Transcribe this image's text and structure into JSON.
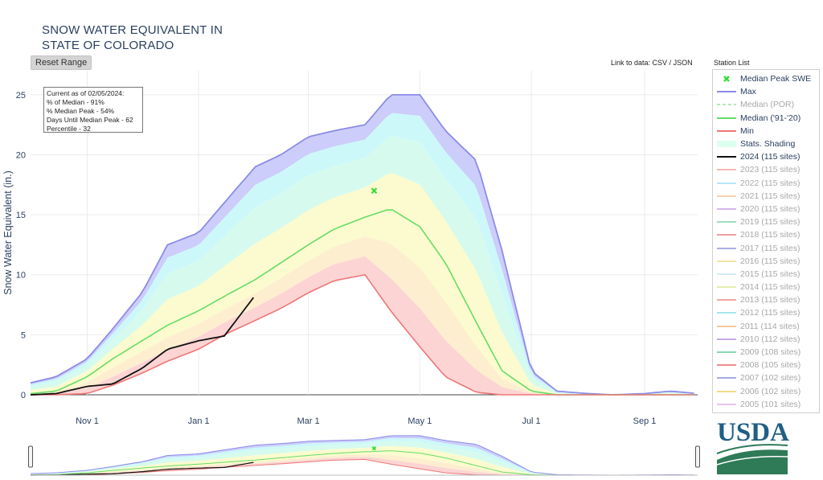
{
  "header": {
    "title_line1": "SNOW WATER EQUIVALENT IN",
    "title_line2": "STATE OF COLORADO",
    "reset_label": "Reset Range",
    "link_prefix": "Link to data: ",
    "link_csv": "CSV",
    "link_sep": " / ",
    "link_json": "JSON",
    "station_list": "Station List"
  },
  "status_box": {
    "lines": [
      "Current as of 02/05/2024:",
      "% of Median - 91%",
      "% Median Peak - 54%",
      "Days Until Median Peak - 62",
      "Percentile - 32"
    ]
  },
  "legend": [
    {
      "label": "Median Peak SWE",
      "type": "marker",
      "color": "#33dd33",
      "dim": false
    },
    {
      "label": "Max",
      "type": "line",
      "color": "#8c8ce8",
      "dim": false
    },
    {
      "label": "Median (POR)",
      "type": "dash",
      "color": "#b9e6b9",
      "dim": true
    },
    {
      "label": "Median ('91-'20)",
      "type": "line",
      "color": "#66dd66",
      "dim": false
    },
    {
      "label": "Min",
      "type": "line",
      "color": "#ee7777",
      "dim": false
    },
    {
      "label": "Stats. Shading",
      "type": "fill",
      "color": "#ddfff0",
      "dim": false
    },
    {
      "label": "2024 (115 sites)",
      "type": "line",
      "color": "#111111",
      "dim": false
    },
    {
      "label": "2023 (115 sites)",
      "type": "line",
      "color": "#f6b6b6",
      "dim": true
    },
    {
      "label": "2022 (115 sites)",
      "type": "line",
      "color": "#b6e6f6",
      "dim": true
    },
    {
      "label": "2021 (115 sites)",
      "type": "line",
      "color": "#f6d0b0",
      "dim": true
    },
    {
      "label": "2020 (115 sites)",
      "type": "line",
      "color": "#d6b6ec",
      "dim": true
    },
    {
      "label": "2019 (115 sites)",
      "type": "line",
      "color": "#9edcc0",
      "dim": true
    },
    {
      "label": "2018 (115 sites)",
      "type": "line",
      "color": "#ee9e9e",
      "dim": true
    },
    {
      "label": "2017 (115 sites)",
      "type": "line",
      "color": "#aab0e6",
      "dim": true
    },
    {
      "label": "2016 (115 sites)",
      "type": "line",
      "color": "#f6e2a6",
      "dim": true
    },
    {
      "label": "2015 (115 sites)",
      "type": "line",
      "color": "#d2ecf2",
      "dim": true
    },
    {
      "label": "2014 (115 sites)",
      "type": "line",
      "color": "#e2eeb0",
      "dim": true
    },
    {
      "label": "2013 (115 sites)",
      "type": "line",
      "color": "#f2a6a6",
      "dim": true
    },
    {
      "label": "2012 (115 sites)",
      "type": "line",
      "color": "#a6e6ee",
      "dim": true
    },
    {
      "label": "2011 (114 sites)",
      "type": "line",
      "color": "#f6c89a",
      "dim": true
    },
    {
      "label": "2010 (112 sites)",
      "type": "line",
      "color": "#c6aae6",
      "dim": true
    },
    {
      "label": "2009 (108 sites)",
      "type": "line",
      "color": "#88d6b4",
      "dim": true
    },
    {
      "label": "2008 (105 sites)",
      "type": "line",
      "color": "#ee8e8e",
      "dim": true
    },
    {
      "label": "2007 (102 sites)",
      "type": "line",
      "color": "#a6aae6",
      "dim": true
    },
    {
      "label": "2006 (102 sites)",
      "type": "line",
      "color": "#f6da8e",
      "dim": true
    },
    {
      "label": "2005 (101 sites)",
      "type": "line",
      "color": "#e6c6ee",
      "dim": true
    }
  ],
  "logo_text": "USDA",
  "chart_data": {
    "type": "area",
    "title": "SNOW WATER EQUIVALENT IN STATE OF COLORADO",
    "ylabel": "Snow Water Equivalent (in.)",
    "xlabel": "",
    "x_ticks": [
      "Nov 1",
      "Jan 1",
      "Mar 1",
      "May 1",
      "Jul 1",
      "Sep 1"
    ],
    "x_range": [
      "2023-10-01",
      "2024-09-30"
    ],
    "ylim": [
      0,
      27
    ],
    "y_ticks": [
      0,
      5,
      10,
      15,
      20,
      25
    ],
    "grid": true,
    "legend_position": "right",
    "median_peak": {
      "date": "2024-04-06",
      "value": 17.0
    },
    "x": [
      "2023-10-01",
      "2023-10-15",
      "2023-11-01",
      "2023-11-15",
      "2023-12-01",
      "2023-12-15",
      "2024-01-01",
      "2024-01-15",
      "2024-02-01",
      "2024-02-15",
      "2024-03-01",
      "2024-03-15",
      "2024-04-01",
      "2024-04-15",
      "2024-05-01",
      "2024-05-15",
      "2024-06-01",
      "2024-06-15",
      "2024-07-01",
      "2024-07-15",
      "2024-08-01",
      "2024-08-15",
      "2024-09-01",
      "2024-09-15",
      "2024-09-30"
    ],
    "series": [
      {
        "name": "Max",
        "values": [
          1.0,
          1.5,
          3.0,
          5.5,
          8.5,
          12.5,
          13.5,
          16.0,
          19.0,
          20.0,
          21.5,
          22.0,
          22.5,
          25.0,
          25.0,
          22.0,
          19.5,
          12.0,
          2.0,
          0.3,
          0.1,
          0.0,
          0.1,
          0.3,
          0.1
        ]
      },
      {
        "name": "Median ('91-'20)",
        "values": [
          0.1,
          0.3,
          1.5,
          3.0,
          4.5,
          5.8,
          7.0,
          8.2,
          9.6,
          11.0,
          12.5,
          13.8,
          14.8,
          15.5,
          14.0,
          11.0,
          6.0,
          2.0,
          0.3,
          0.0,
          0.0,
          0.0,
          0.0,
          0.0,
          0.0
        ]
      },
      {
        "name": "Min",
        "values": [
          0.0,
          0.0,
          0.1,
          0.8,
          1.8,
          2.8,
          3.8,
          5.0,
          6.2,
          7.2,
          8.5,
          9.5,
          10.0,
          7.0,
          4.0,
          1.5,
          0.2,
          0.0,
          0.0,
          0.0,
          0.0,
          0.0,
          0.0,
          0.0,
          0.0
        ]
      },
      {
        "name": "2024 (115 sites)",
        "values": [
          0.0,
          0.1,
          0.7,
          0.9,
          2.2,
          3.8,
          4.5,
          4.9,
          8.3,
          null,
          null,
          null,
          null,
          null,
          null,
          null,
          null,
          null,
          null,
          null,
          null,
          null,
          null,
          null,
          null
        ]
      }
    ]
  }
}
